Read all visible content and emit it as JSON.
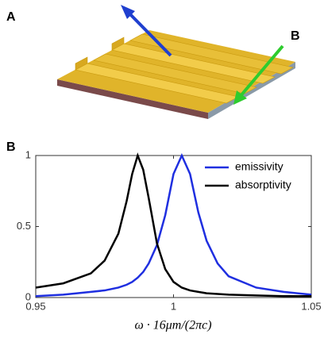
{
  "figure": {
    "panel_labels": [
      "A",
      "B"
    ],
    "arrow_label": "B"
  },
  "chart_data": {
    "type": "line",
    "x_label": "ω · 16μm/(2πc)",
    "x": [
      0.95,
      0.96,
      0.97,
      0.975,
      0.98,
      0.983,
      0.985,
      0.987,
      0.989,
      0.991,
      0.994,
      0.997,
      1.0,
      1.003,
      1.006,
      1.009,
      1.012,
      1.016,
      1.02,
      1.03,
      1.04,
      1.05
    ],
    "series": [
      {
        "name": "emissivity",
        "color": "#1f2fe0",
        "values": [
          0.01,
          0.02,
          0.04,
          0.05,
          0.07,
          0.09,
          0.11,
          0.14,
          0.18,
          0.24,
          0.37,
          0.58,
          0.87,
          1.0,
          0.87,
          0.6,
          0.4,
          0.24,
          0.15,
          0.07,
          0.04,
          0.02
        ]
      },
      {
        "name": "absorptivity",
        "color": "#000000",
        "values": [
          0.07,
          0.1,
          0.17,
          0.26,
          0.45,
          0.68,
          0.87,
          1.0,
          0.9,
          0.7,
          0.38,
          0.2,
          0.11,
          0.07,
          0.05,
          0.04,
          0.03,
          0.025,
          0.02,
          0.015,
          0.01,
          0.01
        ]
      }
    ],
    "xlim": [
      0.95,
      1.05
    ],
    "xticks": [
      0.95,
      1,
      1.05
    ],
    "ylim": [
      0,
      1
    ],
    "yticks": [
      0,
      0.5,
      1
    ],
    "legend": "upper right"
  }
}
